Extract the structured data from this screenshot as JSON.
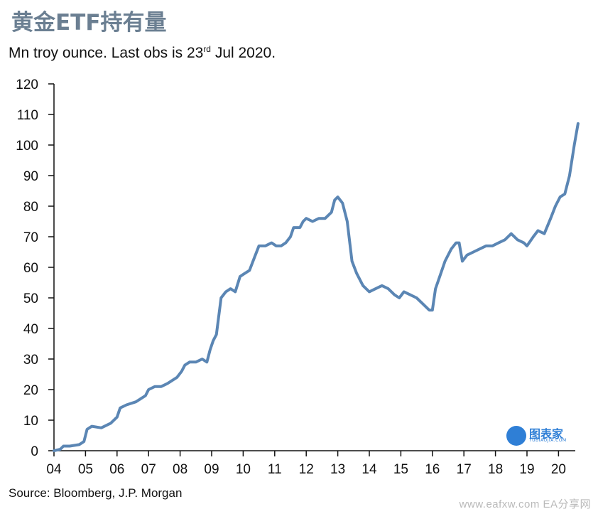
{
  "header": {
    "title": "黄金ETF持有量",
    "subtitle_pre": "Mn troy ounce. Last obs is 23",
    "subtitle_sup": "rd",
    "subtitle_post": " Jul 2020."
  },
  "source": "Source: Bloomberg, J.P. Morgan",
  "footer": "www.eafxw.com  EA分享网",
  "logo": {
    "text": "图表家",
    "subtext": "TUBIAOJIA.COM"
  },
  "colors": {
    "line": "#5b86b4",
    "title": "#6b7f92",
    "logo": "#2f7fd6"
  },
  "chart_data": {
    "type": "line",
    "x_tick_labels": [
      "04",
      "05",
      "06",
      "07",
      "08",
      "09",
      "10",
      "11",
      "12",
      "13",
      "14",
      "15",
      "16",
      "17",
      "18",
      "19",
      "20"
    ],
    "ylim": [
      0,
      120
    ],
    "y_ticks": [
      0,
      10,
      20,
      30,
      40,
      50,
      60,
      70,
      80,
      90,
      100,
      110,
      120
    ],
    "xlim": [
      2004.0,
      2020.62
    ],
    "series": [
      {
        "x": [
          2004.0,
          2004.2,
          2004.3,
          2004.5,
          2004.8,
          2004.95,
          2005.05,
          2005.2,
          2005.5,
          2005.8,
          2006.0,
          2006.1,
          2006.3,
          2006.6,
          2006.9,
          2007.0,
          2007.2,
          2007.4,
          2007.6,
          2007.9,
          2008.05,
          2008.15,
          2008.3,
          2008.5,
          2008.7,
          2008.85,
          2008.95,
          2009.05,
          2009.15,
          2009.3,
          2009.45,
          2009.6,
          2009.75,
          2009.9,
          2010.05,
          2010.2,
          2010.35,
          2010.5,
          2010.7,
          2010.9,
          2011.05,
          2011.2,
          2011.35,
          2011.5,
          2011.6,
          2011.8,
          2011.9,
          2012.0,
          2012.2,
          2012.4,
          2012.6,
          2012.8,
          2012.9,
          2013.0,
          2013.15,
          2013.3,
          2013.45,
          2013.6,
          2013.8,
          2014.0,
          2014.2,
          2014.4,
          2014.6,
          2014.8,
          2014.95,
          2015.1,
          2015.3,
          2015.5,
          2015.7,
          2015.9,
          2016.0,
          2016.1,
          2016.2,
          2016.4,
          2016.6,
          2016.75,
          2016.85,
          2016.95,
          2017.1,
          2017.3,
          2017.5,
          2017.7,
          2017.9,
          2018.1,
          2018.3,
          2018.5,
          2018.7,
          2018.9,
          2019.0,
          2019.2,
          2019.35,
          2019.55,
          2019.75,
          2019.9,
          2020.05,
          2020.2,
          2020.35,
          2020.5,
          2020.62
        ],
        "y": [
          0,
          0.5,
          1.5,
          1.5,
          2,
          3,
          7,
          8,
          7.5,
          9,
          11,
          14,
          15,
          16,
          18,
          20,
          21,
          21,
          22,
          24,
          26,
          28,
          29,
          29,
          30,
          29,
          33,
          36,
          38,
          50,
          52,
          53,
          52,
          57,
          58,
          59,
          63,
          67,
          67,
          68,
          67,
          67,
          68,
          70,
          73,
          73,
          75,
          76,
          75,
          76,
          76,
          78,
          82,
          83,
          81,
          75,
          62,
          58,
          54,
          52,
          53,
          54,
          53,
          51,
          50,
          52,
          51,
          50,
          48,
          46,
          46,
          53,
          56,
          62,
          66,
          68,
          68,
          62,
          64,
          65,
          66,
          67,
          67,
          68,
          69,
          71,
          69,
          68,
          67,
          70,
          72,
          71,
          76,
          80,
          83,
          84,
          90,
          100,
          107
        ]
      }
    ]
  }
}
